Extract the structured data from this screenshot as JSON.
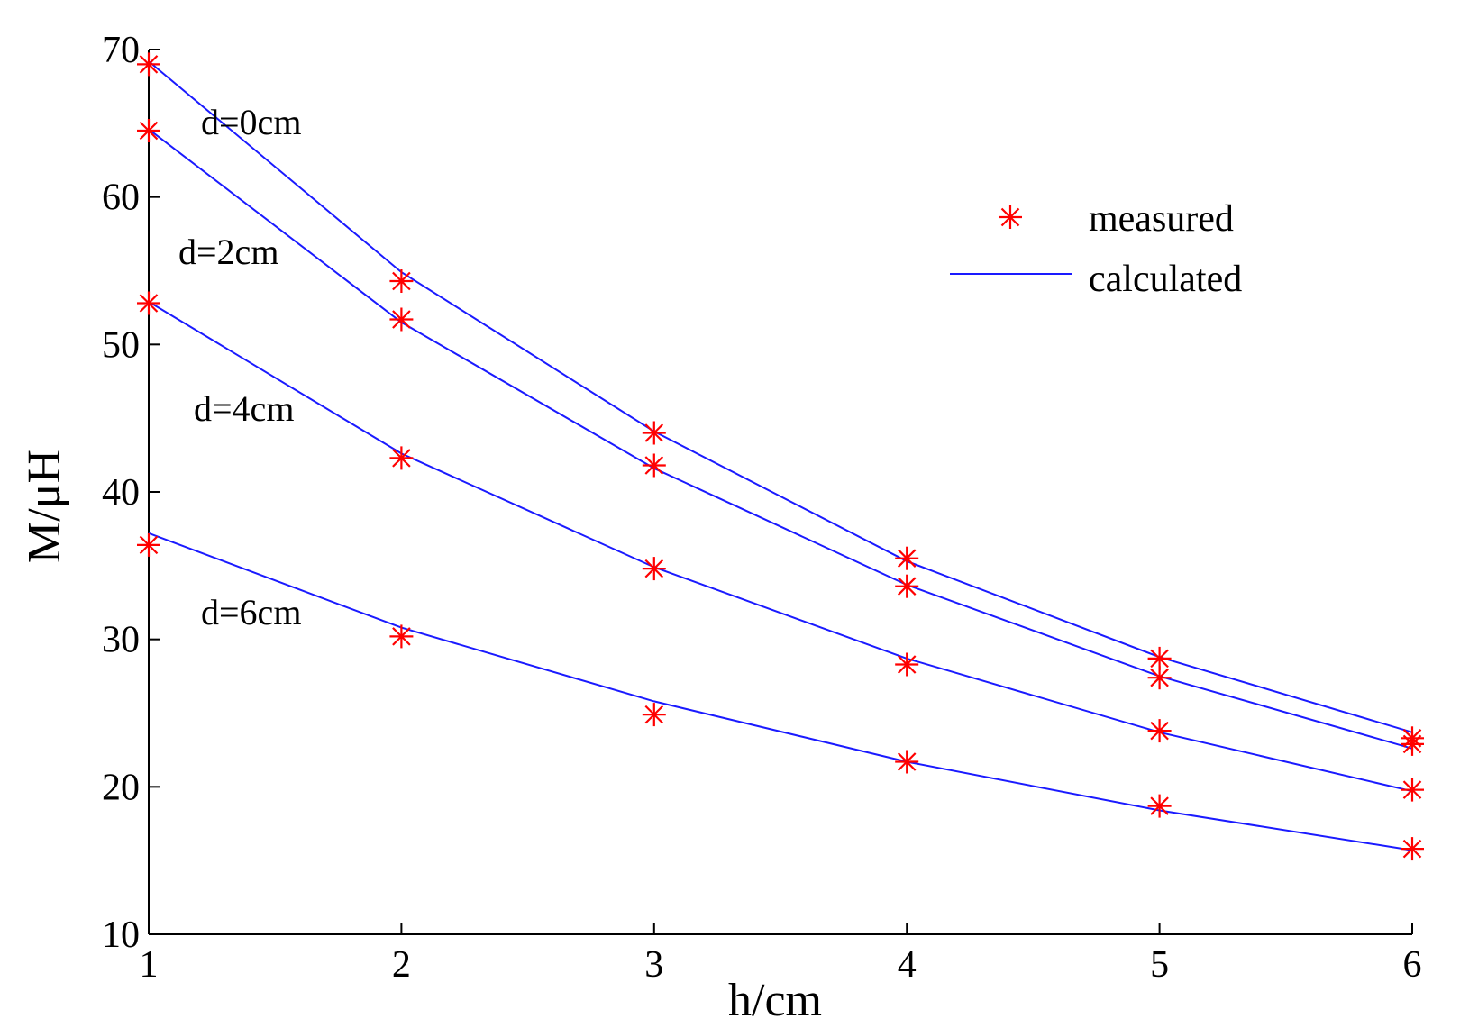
{
  "chart_data": {
    "type": "line",
    "title": "",
    "xlabel": "h/cm",
    "ylabel": "M/μH",
    "xlim": [
      1,
      6
    ],
    "ylim": [
      10,
      70
    ],
    "xticks": [
      1,
      2,
      3,
      4,
      5,
      6
    ],
    "yticks": [
      10,
      20,
      30,
      40,
      50,
      60,
      70
    ],
    "x": [
      1,
      2,
      3,
      4,
      5,
      6
    ],
    "grid": false,
    "legend_position": "top-right",
    "legend": {
      "measured": "measured",
      "calculated": "calculated"
    },
    "colors": {
      "measured": "#ff0000",
      "calculated": "#1a1aff",
      "axis": "#000000"
    },
    "series": [
      {
        "name": "d=0cm",
        "calculated": [
          69.2,
          54.9,
          44.1,
          35.3,
          28.8,
          23.7
        ],
        "measured": [
          69.0,
          54.3,
          44.0,
          35.5,
          28.7,
          23.3
        ]
      },
      {
        "name": "d=2cm",
        "calculated": [
          64.6,
          51.5,
          41.6,
          33.7,
          27.5,
          22.6
        ],
        "measured": [
          64.5,
          51.7,
          41.8,
          33.6,
          27.4,
          22.9
        ]
      },
      {
        "name": "d=4cm",
        "calculated": [
          52.9,
          42.6,
          34.9,
          28.7,
          23.7,
          19.7
        ],
        "measured": [
          52.8,
          42.3,
          34.8,
          28.3,
          23.8,
          19.8
        ]
      },
      {
        "name": "d=6cm",
        "calculated": [
          37.2,
          30.8,
          25.8,
          21.7,
          18.4,
          15.7
        ],
        "measured": [
          36.4,
          30.2,
          24.9,
          21.7,
          18.7,
          15.8
        ]
      }
    ],
    "annotations": [
      "d=0cm",
      "d=2cm",
      "d=4cm",
      "d=6cm"
    ]
  }
}
